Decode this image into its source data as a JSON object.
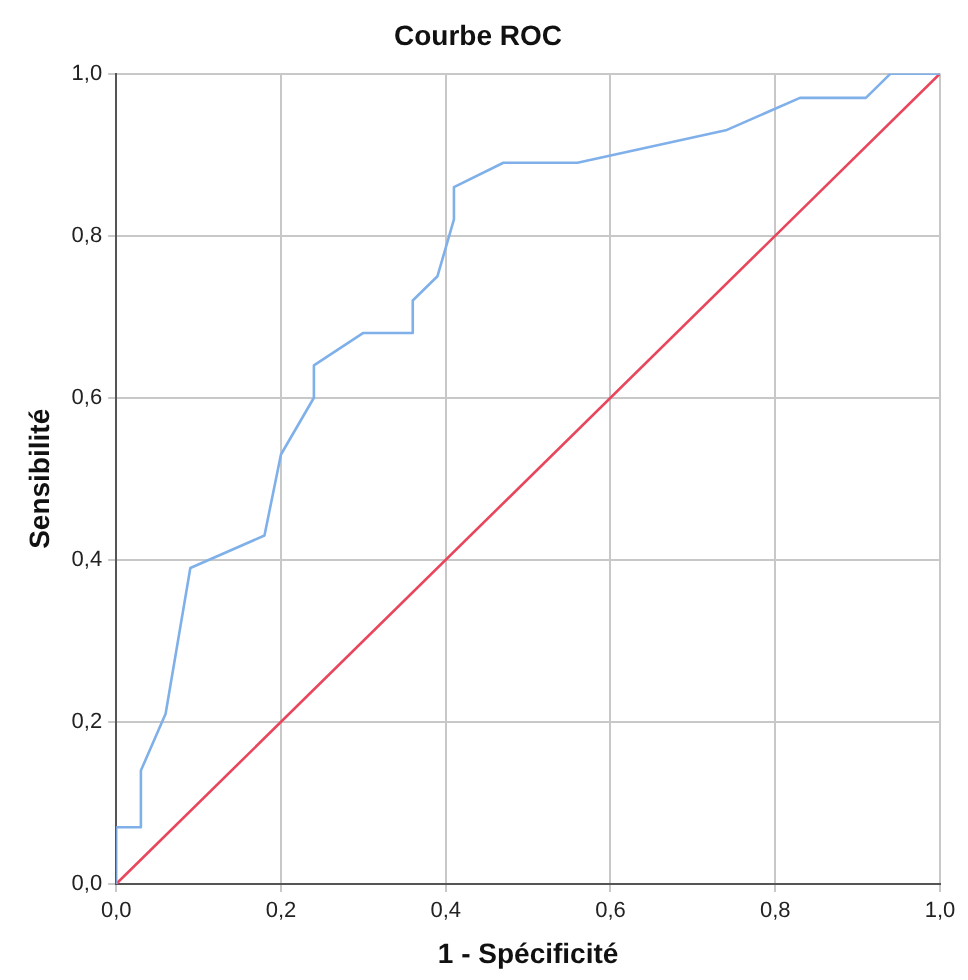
{
  "chart_data": {
    "type": "line",
    "title": "Courbe ROC",
    "xlabel": "1 - Spécificité",
    "ylabel": "Sensibilité",
    "series": [
      {
        "color": "#7fb0ea",
        "x": [
          0,
          0,
          0.03,
          0.03,
          0.06,
          0.09,
          0.18,
          0.2,
          0.24,
          0.24,
          0.3,
          0.36,
          0.36,
          0.39,
          0.41,
          0.41,
          0.47,
          0.56,
          0.74,
          0.83,
          0.91,
          0.94,
          1
        ],
        "values": [
          0,
          0.07,
          0.07,
          0.14,
          0.21,
          0.39,
          0.43,
          0.53,
          0.6,
          0.64,
          0.68,
          0.68,
          0.72,
          0.75,
          0.82,
          0.86,
          0.89,
          0.89,
          0.93,
          0.97,
          0.97,
          1,
          1
        ]
      },
      {
        "color": "#e8465c",
        "x": [
          0,
          1
        ],
        "values": [
          0,
          1
        ]
      }
    ],
    "xlim": [
      0,
      1
    ],
    "ylim": [
      0,
      1
    ],
    "xticks": [
      {
        "value": 0,
        "label": "0,0"
      },
      {
        "value": 0.2,
        "label": "0,2"
      },
      {
        "value": 0.4,
        "label": "0,4"
      },
      {
        "value": 0.6,
        "label": "0,6"
      },
      {
        "value": 0.8,
        "label": "0,8"
      },
      {
        "value": 1,
        "label": "1,0"
      }
    ],
    "yticks": [
      {
        "value": 0,
        "label": "0,0"
      },
      {
        "value": 0.2,
        "label": "0,2"
      },
      {
        "value": 0.4,
        "label": "0,4"
      },
      {
        "value": 0.6,
        "label": "0,6"
      },
      {
        "value": 0.8,
        "label": "0,8"
      },
      {
        "value": 1,
        "label": "1,0"
      }
    ],
    "grid": true,
    "legend": false,
    "marker": "none",
    "line_style": "solid"
  }
}
